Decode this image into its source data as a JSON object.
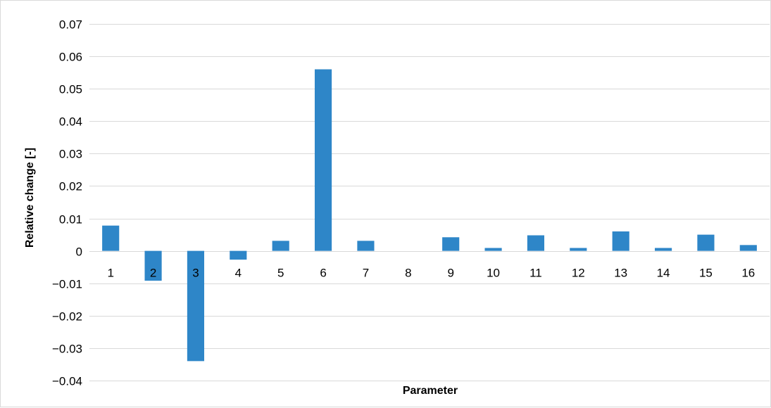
{
  "chart_data": {
    "type": "bar",
    "title": "",
    "xlabel": "Parameter",
    "ylabel": "Relative change [-]",
    "categories": [
      "1",
      "2",
      "3",
      "4",
      "5",
      "6",
      "7",
      "8",
      "9",
      "10",
      "11",
      "12",
      "13",
      "14",
      "15",
      "16"
    ],
    "values": [
      0.0078,
      -0.0092,
      -0.034,
      -0.0027,
      0.0031,
      0.056,
      0.0031,
      0.0,
      0.0042,
      0.0009,
      0.0048,
      0.0009,
      0.006,
      0.0009,
      0.005,
      0.0018
    ],
    "ylim": [
      -0.04,
      0.07
    ],
    "yticks": [
      "0.07",
      "0.06",
      "0.05",
      "0.04",
      "0.03",
      "0.02",
      "0.01",
      "0",
      "−0.01",
      "−0.02",
      "−0.03",
      "−0.04"
    ],
    "ytick_values": [
      0.07,
      0.06,
      0.05,
      0.04,
      0.03,
      0.02,
      0.01,
      0,
      -0.01,
      -0.02,
      -0.03,
      -0.04
    ],
    "grid": true,
    "legend": "none",
    "bar_color": "#2E86C8",
    "grid_color": "#d9d9d9"
  }
}
